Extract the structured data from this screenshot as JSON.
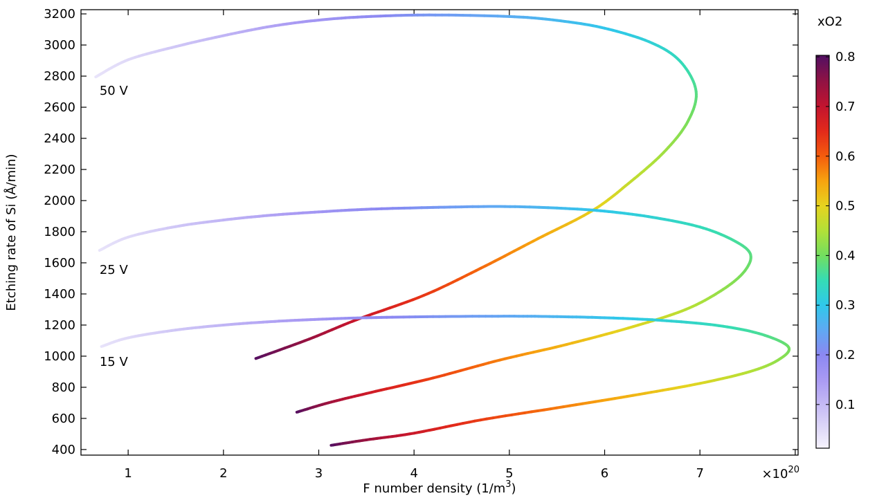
{
  "chart_data": {
    "type": "line",
    "title": "",
    "xlabel": {
      "text": "F number density (1/m",
      "sup": "3",
      "end": ")"
    },
    "ylabel": "Etching rate of Si (Å/min)",
    "x_axis_multiplier": {
      "text": "×10",
      "sup": "20"
    },
    "xlim": [
      0.505,
      8.03
    ],
    "ylim": [
      364,
      3227
    ],
    "x_ticks": [
      1,
      2,
      3,
      4,
      5,
      6,
      7,
      8
    ],
    "x_tick_labels": [
      "1",
      "2",
      "3",
      "4",
      "5",
      "6",
      "7",
      ""
    ],
    "y_ticks": [
      400,
      600,
      800,
      1000,
      1200,
      1400,
      1600,
      1800,
      2000,
      2200,
      2400,
      2600,
      2800,
      3000,
      3200
    ],
    "grid": false,
    "legend_position": "none",
    "colorbar": {
      "title": "xO2",
      "range": [
        0.012,
        0.803
      ],
      "ticks": [
        0.1,
        0.2,
        0.3,
        0.4,
        0.5,
        0.6,
        0.7,
        0.8
      ],
      "tick_labels": [
        "0.1",
        "0.2",
        "0.3",
        "0.4",
        "0.5",
        "0.6",
        "0.7",
        "0.8"
      ],
      "colormap_stops": [
        [
          0.0,
          "#f6f3fd"
        ],
        [
          0.05,
          "#e0daf8"
        ],
        [
          0.1,
          "#c5baf5"
        ],
        [
          0.15,
          "#a99af3"
        ],
        [
          0.2,
          "#8b88f2"
        ],
        [
          0.25,
          "#5fa9f3"
        ],
        [
          0.3,
          "#2fc8ea"
        ],
        [
          0.35,
          "#35dcb5"
        ],
        [
          0.4,
          "#73de5f"
        ],
        [
          0.45,
          "#b2e038"
        ],
        [
          0.5,
          "#e6d31f"
        ],
        [
          0.55,
          "#f7a30f"
        ],
        [
          0.6,
          "#f45c0d"
        ],
        [
          0.65,
          "#e32a1a"
        ],
        [
          0.7,
          "#c2142f"
        ],
        [
          0.75,
          "#911243"
        ],
        [
          0.8,
          "#551061"
        ]
      ]
    },
    "series": [
      {
        "name": "50 V",
        "label": "50 V",
        "label_pos": [
          0.7,
          2680
        ],
        "color_by": "xO2",
        "points": [
          [
            0.66,
            2795,
            0.03
          ],
          [
            1.0,
            2905,
            0.05
          ],
          [
            1.5,
            2990,
            0.08
          ],
          [
            2.0,
            3060,
            0.108
          ],
          [
            2.5,
            3120,
            0.135
          ],
          [
            3.0,
            3160,
            0.163
          ],
          [
            3.5,
            3182,
            0.19
          ],
          [
            4.16,
            3193,
            0.222
          ],
          [
            5.0,
            3183,
            0.255
          ],
          [
            5.5,
            3158,
            0.275
          ],
          [
            6.0,
            3108,
            0.296
          ],
          [
            6.5,
            3012,
            0.32
          ],
          [
            6.8,
            2890,
            0.343
          ],
          [
            6.96,
            2700,
            0.375
          ],
          [
            6.87,
            2505,
            0.405
          ],
          [
            6.62,
            2310,
            0.435
          ],
          [
            6.25,
            2110,
            0.468
          ],
          [
            5.87,
            1935,
            0.505
          ],
          [
            5.3,
            1755,
            0.545
          ],
          [
            4.7,
            1565,
            0.59
          ],
          [
            4.1,
            1390,
            0.635
          ],
          [
            3.4,
            1235,
            0.69
          ],
          [
            2.9,
            1110,
            0.74
          ],
          [
            2.34,
            985,
            0.8
          ]
        ]
      },
      {
        "name": "25 V",
        "label": "25 V",
        "label_pos": [
          0.7,
          1529
        ],
        "color_by": "xO2",
        "points": [
          [
            0.7,
            1680,
            0.03
          ],
          [
            1.0,
            1765,
            0.05
          ],
          [
            1.5,
            1833,
            0.08
          ],
          [
            2.0,
            1875,
            0.108
          ],
          [
            2.5,
            1906,
            0.135
          ],
          [
            3.0,
            1927,
            0.163
          ],
          [
            3.5,
            1944,
            0.19
          ],
          [
            4.2,
            1956,
            0.222
          ],
          [
            4.9,
            1962,
            0.252
          ],
          [
            5.5,
            1952,
            0.278
          ],
          [
            6.0,
            1932,
            0.3
          ],
          [
            6.5,
            1893,
            0.322
          ],
          [
            7.0,
            1830,
            0.345
          ],
          [
            7.35,
            1745,
            0.362
          ],
          [
            7.53,
            1655,
            0.378
          ],
          [
            7.46,
            1540,
            0.4
          ],
          [
            7.22,
            1420,
            0.425
          ],
          [
            6.85,
            1300,
            0.455
          ],
          [
            6.3,
            1190,
            0.49
          ],
          [
            5.6,
            1075,
            0.53
          ],
          [
            4.9,
            975,
            0.575
          ],
          [
            4.2,
            860,
            0.625
          ],
          [
            3.5,
            760,
            0.685
          ],
          [
            3.1,
            700,
            0.735
          ],
          [
            2.77,
            640,
            0.8
          ]
        ]
      },
      {
        "name": "15 V",
        "label": "15 V",
        "label_pos": [
          0.7,
          937
        ],
        "color_by": "xO2",
        "points": [
          [
            0.72,
            1062,
            0.03
          ],
          [
            1.0,
            1118,
            0.05
          ],
          [
            1.5,
            1168,
            0.08
          ],
          [
            2.0,
            1200,
            0.108
          ],
          [
            2.5,
            1222,
            0.135
          ],
          [
            3.0,
            1237,
            0.16
          ],
          [
            3.5,
            1247,
            0.185
          ],
          [
            4.2,
            1254,
            0.215
          ],
          [
            5.0,
            1257,
            0.248
          ],
          [
            5.5,
            1254,
            0.27
          ],
          [
            6.0,
            1247,
            0.292
          ],
          [
            6.6,
            1230,
            0.318
          ],
          [
            7.2,
            1196,
            0.345
          ],
          [
            7.65,
            1140,
            0.368
          ],
          [
            7.93,
            1058,
            0.395
          ],
          [
            7.82,
            975,
            0.422
          ],
          [
            7.52,
            900,
            0.45
          ],
          [
            7.0,
            825,
            0.488
          ],
          [
            6.3,
            748,
            0.53
          ],
          [
            5.5,
            668,
            0.578
          ],
          [
            4.7,
            590,
            0.63
          ],
          [
            4.0,
            505,
            0.685
          ],
          [
            3.5,
            462,
            0.74
          ],
          [
            3.13,
            427,
            0.8
          ]
        ]
      }
    ]
  }
}
